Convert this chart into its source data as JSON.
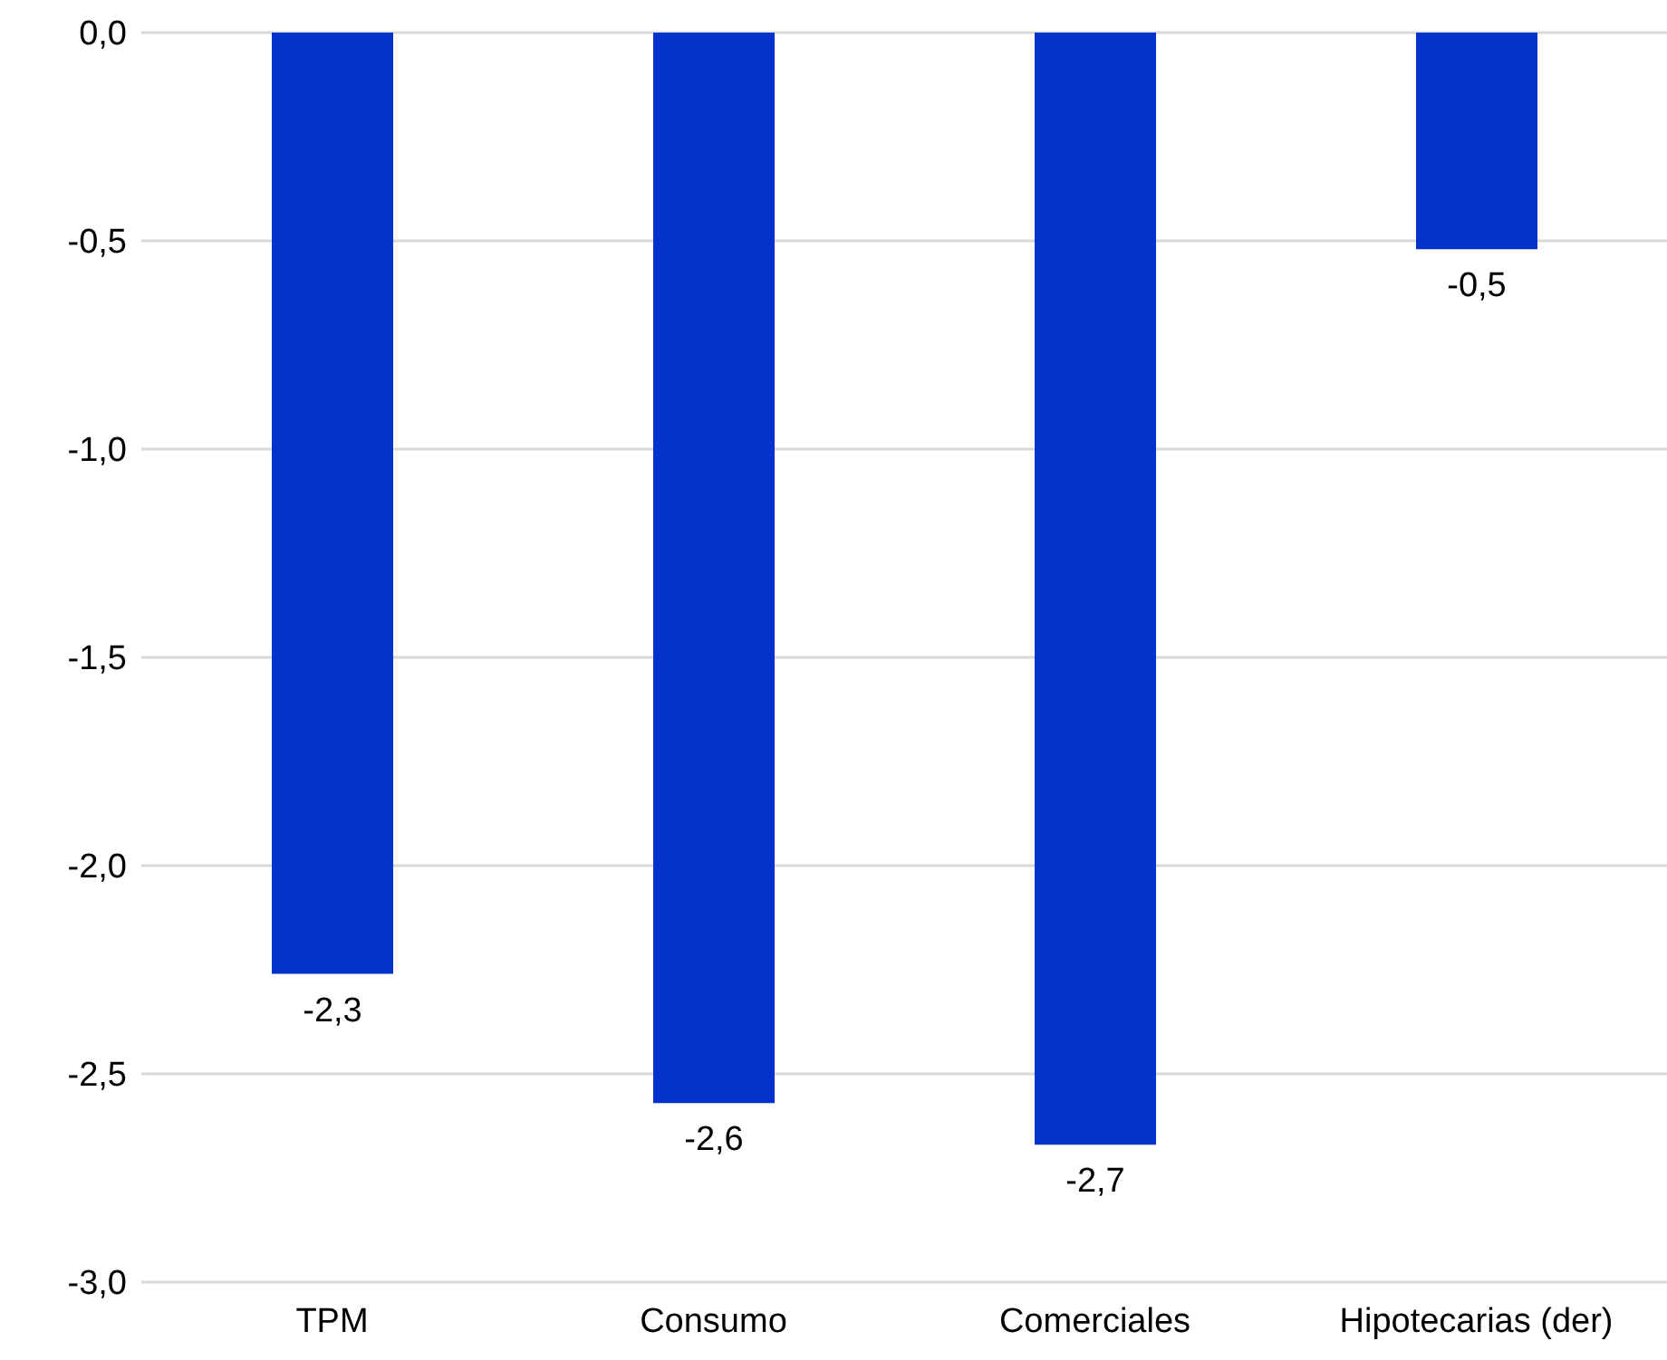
{
  "chart_data": {
    "type": "bar",
    "categories": [
      "TPM",
      "Consumo",
      "Comerciales",
      "Hipotecarias (der)"
    ],
    "values": [
      -2.26,
      -2.57,
      -2.67,
      -0.52
    ],
    "value_labels": [
      "-2,3",
      "-2,6",
      "-2,7",
      "-0,5"
    ],
    "color": "#0433cc",
    "ylim": [
      -3,
      0
    ],
    "yticks": [
      {
        "value": 0,
        "label": "0,0"
      },
      {
        "value": -0.5,
        "label": "-0,5"
      },
      {
        "value": -1,
        "label": "-1,0"
      },
      {
        "value": -1.5,
        "label": "-1,5"
      },
      {
        "value": -2,
        "label": "-2,0"
      },
      {
        "value": -2.5,
        "label": "-2,5"
      },
      {
        "value": -3,
        "label": "-3,0"
      }
    ],
    "grid": "y",
    "legend": false
  }
}
